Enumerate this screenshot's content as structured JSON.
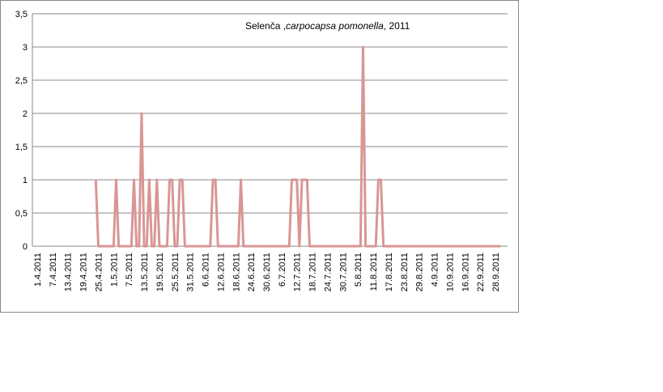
{
  "chart_data": {
    "type": "line",
    "title": [
      "Selenča ,",
      "carpocapsa pomonella",
      ", 2011"
    ],
    "categories": [
      "1.4.2011",
      null,
      null,
      null,
      null,
      null,
      "7.4.2011",
      null,
      null,
      null,
      null,
      null,
      "13.4.2011",
      null,
      null,
      null,
      null,
      null,
      "19.4.2011",
      null,
      null,
      null,
      null,
      null,
      "25.4.2011",
      null,
      null,
      null,
      null,
      null,
      "1.5.2011",
      null,
      null,
      null,
      null,
      null,
      "7.5.2011",
      null,
      null,
      null,
      null,
      null,
      "13.5.2011",
      null,
      null,
      null,
      null,
      null,
      "19.5.2011",
      null,
      null,
      null,
      null,
      null,
      "25.5.2011",
      null,
      null,
      null,
      null,
      null,
      "31.5.2011",
      null,
      null,
      null,
      null,
      null,
      "6.6.2011",
      null,
      null,
      null,
      null,
      null,
      "12.6.2011",
      null,
      null,
      null,
      null,
      null,
      "18.6.2011",
      null,
      null,
      null,
      null,
      null,
      "24.6.2011",
      null,
      null,
      null,
      null,
      null,
      "30.6.2011",
      null,
      null,
      null,
      null,
      null,
      "6.7.2011",
      null,
      null,
      null,
      null,
      null,
      "12.7.2011",
      null,
      null,
      null,
      null,
      null,
      "18.7.2011",
      null,
      null,
      null,
      null,
      null,
      "24.7.2011",
      null,
      null,
      null,
      null,
      null,
      "30.7.2011",
      null,
      null,
      null,
      null,
      null,
      "5.8.2011",
      null,
      null,
      null,
      null,
      null,
      "11.8.2011",
      null,
      null,
      null,
      null,
      null,
      "17.8.2011",
      null,
      null,
      null,
      null,
      null,
      "23.8.2011",
      null,
      null,
      null,
      null,
      null,
      "29.8.2011",
      null,
      null,
      null,
      null,
      null,
      "4.9.2011",
      null,
      null,
      null,
      null,
      null,
      "10.9.2011",
      null,
      null,
      null,
      null,
      null,
      "16.9.2011",
      null,
      null,
      null,
      null,
      null,
      "22.9.2011",
      null,
      null,
      null,
      null,
      null,
      "28.9.2011",
      null,
      null
    ],
    "series": [
      {
        "color": "#d99694",
        "values": [
          null,
          null,
          null,
          null,
          null,
          null,
          null,
          null,
          null,
          null,
          null,
          null,
          null,
          null,
          null,
          null,
          null,
          null,
          null,
          null,
          null,
          null,
          null,
          1,
          0,
          0,
          0,
          0,
          0,
          0,
          0,
          1,
          0,
          0,
          0,
          0,
          0,
          0,
          1,
          0,
          0,
          2,
          0,
          0,
          1,
          0,
          0,
          1,
          0,
          0,
          0,
          0,
          1,
          1,
          0,
          0,
          1,
          1,
          0,
          0,
          0,
          0,
          0,
          0,
          0,
          0,
          0,
          0,
          0,
          1,
          1,
          0,
          0,
          0,
          0,
          0,
          0,
          0,
          0,
          0,
          1,
          0,
          0,
          0,
          0,
          0,
          0,
          0,
          0,
          0,
          0,
          0,
          0,
          0,
          0,
          0,
          0,
          0,
          0,
          0,
          1,
          1,
          1,
          0,
          1,
          1,
          1,
          0,
          0,
          0,
          0,
          0,
          0,
          0,
          0,
          0,
          0,
          0,
          0,
          0,
          0,
          0,
          0,
          0,
          0,
          0,
          0,
          0,
          3,
          0,
          0,
          0,
          0,
          0,
          1,
          1,
          0,
          0,
          0,
          0,
          0,
          0,
          0,
          0,
          0,
          0,
          0,
          0,
          0,
          0,
          0,
          0,
          0,
          0,
          0,
          0,
          0,
          0,
          0,
          0,
          0,
          0,
          0,
          0,
          0,
          0,
          0,
          0,
          0,
          0,
          0,
          0,
          0,
          0,
          0,
          0,
          0,
          0,
          0,
          0,
          0,
          0,
          0
        ]
      }
    ],
    "ylim": [
      0,
      3.5
    ],
    "yticks": [
      0,
      {
        "value": 0.5,
        "label": "0,5"
      },
      1,
      {
        "value": 1.5,
        "label": "1,5"
      },
      2,
      {
        "value": 2.5,
        "label": "2,5"
      },
      3,
      {
        "value": 3.5,
        "label": "3,5"
      }
    ],
    "grid": true
  }
}
